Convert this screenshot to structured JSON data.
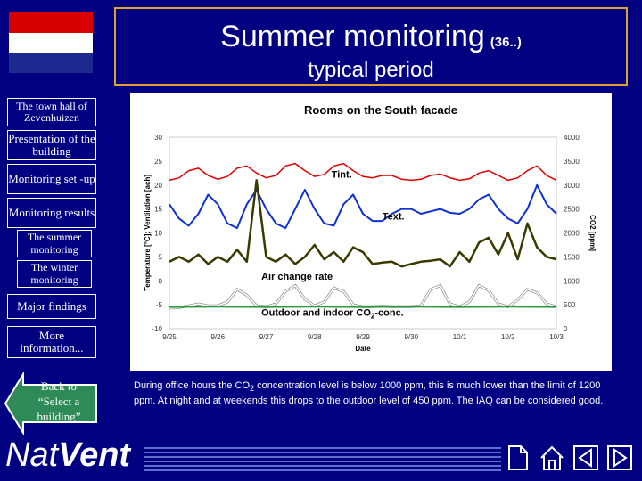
{
  "header": {
    "title": "Summer monitoring",
    "title_number": "(36..)",
    "subtitle": "typical period"
  },
  "colors": {
    "background": "#000080",
    "flag_red": "#d80000",
    "flag_white": "#ffffff",
    "flag_blue": "#1e2a90",
    "title_border": "#e0a030",
    "series_tint": "#e00000",
    "series_text": "#1030d0",
    "series_acr": "#3a3a00",
    "series_co2_indoor": "#ffffff",
    "series_co2_outdoor": "#2a9a3a"
  },
  "sidebar": {
    "items": [
      {
        "label": "The town hall of Zevenhuizen"
      },
      {
        "label": "Presentation of the building"
      },
      {
        "label": "Monitoring set -up"
      },
      {
        "label": "Monitoring results"
      },
      {
        "label": "The summer monitoring"
      },
      {
        "label": "The winter monitoring"
      },
      {
        "label": "Major findings"
      },
      {
        "label": "More information..."
      }
    ],
    "back_label": "Back to “Select a building”"
  },
  "description": {
    "part1": "During office hours the CO",
    "sub": "2",
    "part2": " concentration level is below 1000 ppm, this is much lower than the limit of 1200 ppm. At night and at weekends this drops to the outdoor level of 450 ppm. The IAQ can be considered good."
  },
  "logo": {
    "nat": "Nat",
    "vent": "Vent"
  },
  "toolbar": {
    "icons": [
      "page-icon",
      "home-icon",
      "back-arrow-icon",
      "forward-arrow-icon"
    ]
  },
  "chart_data": {
    "type": "line",
    "title": "Rooms on the South facade",
    "xlabel": "Date",
    "ylabel_left": "Temperature [°C]; Ventilation [ach]",
    "ylabel_right": "CO2 [ppm]",
    "ylim_left": [
      -10,
      30
    ],
    "ylim_right": [
      0,
      4000
    ],
    "x_ticks": [
      "9/25",
      "9/26",
      "9/27",
      "9/28",
      "9/29",
      "9/30",
      "10/1",
      "10/2",
      "10/3"
    ],
    "x_range": [
      0,
      8
    ],
    "y_ticks_left": [
      -10,
      -5,
      0,
      5,
      10,
      15,
      20,
      25,
      30
    ],
    "y_ticks_right": [
      0,
      500,
      1000,
      1500,
      2000,
      2500,
      3000,
      3500,
      4000
    ],
    "annotations": [
      {
        "text": "Tint.",
        "x": 3.35,
        "y": 21.5
      },
      {
        "text": "Text.",
        "x": 4.4,
        "y": 12.8
      },
      {
        "text": "Air change rate",
        "x": 1.9,
        "y": 0.2
      },
      {
        "text": "Outdoor and indoor CO",
        "sub": "2",
        "tail": "-conc.",
        "x": 1.9,
        "y": -7.3
      }
    ],
    "series": [
      {
        "name": "Tint.",
        "axis": "left",
        "x": [
          0,
          0.2,
          0.4,
          0.6,
          0.8,
          1,
          1.2,
          1.4,
          1.6,
          1.8,
          2,
          2.2,
          2.4,
          2.6,
          2.8,
          3,
          3.2,
          3.4,
          3.6,
          3.8,
          4,
          4.2,
          4.4,
          4.6,
          4.8,
          5,
          5.2,
          5.4,
          5.6,
          5.8,
          6,
          6.2,
          6.4,
          6.6,
          6.8,
          7,
          7.2,
          7.4,
          7.6,
          7.8,
          8
        ],
        "y": [
          21,
          21.5,
          23,
          23.5,
          22,
          21.2,
          21.8,
          23.5,
          24,
          22.5,
          21.5,
          22,
          24,
          24.5,
          23,
          21.8,
          22.2,
          24,
          24.5,
          23,
          21.8,
          21.5,
          22,
          22,
          21.2,
          21,
          21.2,
          22,
          22.3,
          21.5,
          21,
          21.3,
          22.5,
          23,
          22,
          21,
          21.5,
          23,
          24,
          22,
          21
        ]
      },
      {
        "name": "Text.",
        "axis": "left",
        "x": [
          0,
          0.2,
          0.4,
          0.6,
          0.8,
          1,
          1.2,
          1.4,
          1.6,
          1.8,
          2,
          2.2,
          2.4,
          2.6,
          2.8,
          3,
          3.2,
          3.4,
          3.6,
          3.8,
          4,
          4.2,
          4.4,
          4.6,
          4.8,
          5,
          5.2,
          5.4,
          5.6,
          5.8,
          6,
          6.2,
          6.4,
          6.6,
          6.8,
          7,
          7.2,
          7.4,
          7.6,
          7.8,
          8
        ],
        "y": [
          16,
          13,
          11.5,
          14,
          18,
          16,
          12,
          11,
          16,
          19,
          15,
          12,
          11,
          15,
          19,
          15,
          12,
          11.5,
          16,
          18,
          14,
          12.5,
          12.5,
          14,
          15,
          15,
          14,
          14.5,
          15,
          14.2,
          14,
          15,
          17,
          18,
          15,
          13,
          12,
          15,
          20,
          16,
          14
        ]
      },
      {
        "name": "Air change rate",
        "axis": "left",
        "x": [
          0,
          0.2,
          0.4,
          0.6,
          0.8,
          1,
          1.2,
          1.4,
          1.6,
          1.8,
          2,
          2.2,
          2.4,
          2.6,
          2.8,
          3,
          3.2,
          3.4,
          3.6,
          3.8,
          4,
          4.2,
          4.4,
          4.6,
          4.8,
          5,
          5.2,
          5.4,
          5.6,
          5.8,
          6,
          6.2,
          6.4,
          6.6,
          6.8,
          7,
          7.2,
          7.4,
          7.6,
          7.8,
          8
        ],
        "y": [
          4,
          5,
          4,
          5.5,
          3.5,
          5,
          4,
          6.5,
          4,
          21,
          5,
          4,
          5.5,
          3.5,
          5,
          7.5,
          4.5,
          6,
          4,
          7,
          6,
          3.5,
          3.8,
          4,
          3,
          3.5,
          4,
          4.2,
          4.5,
          3,
          6,
          4,
          8,
          9,
          5.5,
          10,
          4.5,
          12,
          7,
          5,
          4.5
        ]
      },
      {
        "name": "CO2 indoor",
        "axis": "right",
        "x": [
          0,
          0.2,
          0.4,
          0.6,
          0.8,
          1,
          1.2,
          1.4,
          1.6,
          1.8,
          2,
          2.2,
          2.4,
          2.6,
          2.8,
          3,
          3.2,
          3.4,
          3.6,
          3.8,
          4,
          4.2,
          4.4,
          4.6,
          4.8,
          5,
          5.2,
          5.4,
          5.6,
          5.8,
          6,
          6.2,
          6.4,
          6.6,
          6.8,
          7,
          7.2,
          7.4,
          7.6,
          7.8,
          8
        ],
        "y": [
          430,
          440,
          480,
          520,
          480,
          480,
          560,
          820,
          700,
          480,
          460,
          520,
          780,
          900,
          620,
          480,
          560,
          850,
          780,
          500,
          460,
          460,
          470,
          460,
          460,
          460,
          480,
          820,
          900,
          520,
          460,
          560,
          900,
          800,
          520,
          460,
          600,
          820,
          750,
          520,
          460
        ]
      },
      {
        "name": "CO2 outdoor",
        "axis": "right",
        "x": [
          0,
          1,
          2,
          3,
          4,
          5,
          6,
          7,
          8
        ],
        "y": [
          450,
          455,
          450,
          455,
          450,
          455,
          450,
          455,
          450
        ]
      }
    ]
  }
}
